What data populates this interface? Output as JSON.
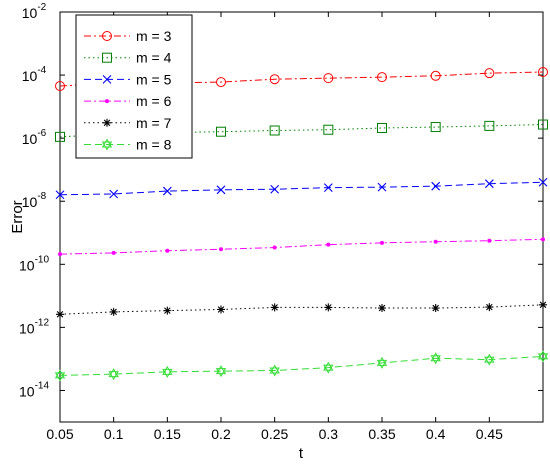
{
  "chart_data": {
    "type": "line",
    "xlabel": "t",
    "ylabel": "Error",
    "y_scale": "log",
    "xlim": [
      0.05,
      0.5
    ],
    "ylim": [
      1e-15,
      0.01
    ],
    "grid": false,
    "legend_position": "top-left",
    "x_ticks": [
      "0.05",
      "0.1",
      "0.15",
      "0.2",
      "0.25",
      "0.3",
      "0.35",
      "0.4",
      "0.45"
    ],
    "y_ticks": [
      {
        "base": "10",
        "exp": "-14",
        "value": 1e-14
      },
      {
        "base": "10",
        "exp": "-12",
        "value": 1e-12
      },
      {
        "base": "10",
        "exp": "-10",
        "value": 1e-10
      },
      {
        "base": "10",
        "exp": "-8",
        "value": 1e-08
      },
      {
        "base": "10",
        "exp": "-6",
        "value": 1e-06
      },
      {
        "base": "10",
        "exp": "-4",
        "value": 0.0001
      },
      {
        "base": "10",
        "exp": "-2",
        "value": 0.01
      }
    ],
    "x": [
      0.05,
      0.1,
      0.15,
      0.2,
      0.25,
      0.3,
      0.35,
      0.4,
      0.45,
      0.5
    ],
    "series": [
      {
        "name": "m = 3",
        "color": "#ff0000",
        "dash": "dashdot",
        "marker": "circle",
        "values": [
          4.5e-05,
          5.6e-05,
          5.6e-05,
          6e-05,
          7.4e-05,
          8e-05,
          8.6e-05,
          9.5e-05,
          0.000115,
          0.000125
        ]
      },
      {
        "name": "m = 4",
        "color": "#008000",
        "dash": "dotted",
        "marker": "square",
        "values": [
          1.1e-06,
          1.35e-06,
          1.5e-06,
          1.6e-06,
          1.75e-06,
          1.85e-06,
          2.1e-06,
          2.25e-06,
          2.45e-06,
          2.7e-06
        ]
      },
      {
        "name": "m = 5",
        "color": "#0000ff",
        "dash": "dashed",
        "marker": "x",
        "values": [
          1.6e-08,
          1.7e-08,
          2.1e-08,
          2.3e-08,
          2.4e-08,
          2.7e-08,
          2.8e-08,
          3e-08,
          3.6e-08,
          4e-08
        ]
      },
      {
        "name": "m = 6",
        "color": "#ff00ff",
        "dash": "dashdot",
        "marker": "point",
        "values": [
          2.1e-10,
          2.3e-10,
          2.7e-10,
          3e-10,
          3.4e-10,
          4.2e-10,
          4.8e-10,
          5.2e-10,
          5.6e-10,
          6.2e-10
        ]
      },
      {
        "name": "m = 7",
        "color": "#000000",
        "dash": "dotted",
        "marker": "star",
        "values": [
          2.6e-12,
          3.1e-12,
          3.4e-12,
          3.7e-12,
          4.3e-12,
          4.3e-12,
          4.1e-12,
          4.1e-12,
          4.4e-12,
          5.2e-12
        ]
      },
      {
        "name": "m = 8",
        "color": "#33dd33",
        "dash": "dashed",
        "marker": "hexagram",
        "values": [
          3e-14,
          3.3e-14,
          3.9e-14,
          4.1e-14,
          4.3e-14,
          5.3e-14,
          7.5e-14,
          1.05e-13,
          9.5e-14,
          1.2e-13
        ]
      }
    ]
  }
}
